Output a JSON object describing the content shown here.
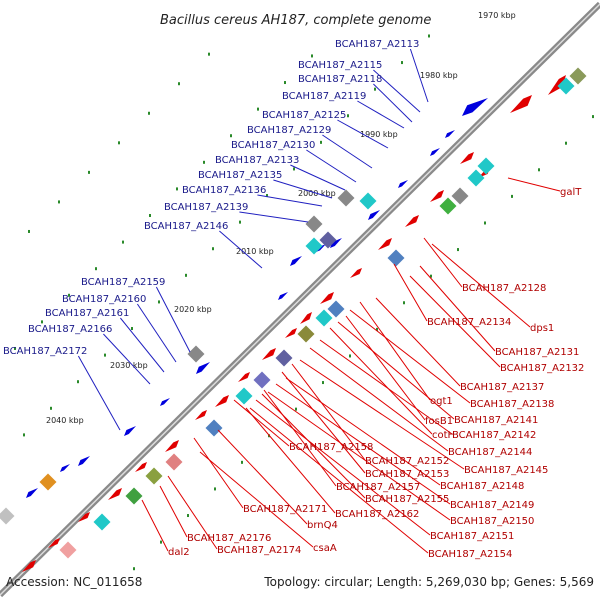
{
  "title": "Bacillus cereus AH187, complete genome",
  "footer": {
    "accession": "Accession: NC_011658",
    "summary": "Topology: circular; Length: 5,269,030 bp; Genes: 5,569"
  },
  "colors": {
    "backbone": "#8a8a8a",
    "forward_strand": "#e00000",
    "reverse_strand": "#0000dd",
    "blue_label": "#1a1a8a",
    "red_label": "#b00000",
    "tick": "#2a8a2a"
  },
  "ticks": [
    "1970 kbp",
    "1980 kbp",
    "1990 kbp",
    "2000 kbp",
    "2010 kbp",
    "2020 kbp",
    "2030 kbp",
    "2040 kbp"
  ],
  "blue_labels": [
    "BCAH187_A2113",
    "BCAH187_A2115",
    "BCAH187_A2118",
    "BCAH187_A2119",
    "BCAH187_A2125",
    "BCAH187_A2129",
    "BCAH187_A2130",
    "BCAH187_A2133",
    "BCAH187_A2135",
    "BCAH187_A2136",
    "BCAH187_A2139",
    "BCAH187_A2146",
    "BCAH187_A2159",
    "BCAH187_A2160",
    "BCAH187_A2161",
    "BCAH187_A2166",
    "BCAH187_A2172"
  ],
  "red_labels": [
    "galT",
    "BCAH187_A2128",
    "BCAH187_A2134",
    "dps1",
    "BCAH187_A2131",
    "BCAH187_A2132",
    "BCAH187_A2137",
    "ogt1",
    "BCAH187_A2138",
    "fosB1",
    "BCAH187_A2141",
    "cotH",
    "BCAH187_A2142",
    "BCAH187_A2144",
    "BCAH187_A2158",
    "BCAH187_A2152",
    "BCAH187_A2145",
    "BCAH187_A2153",
    "BCAH187_A2157",
    "BCAH187_A2148",
    "BCAH187_A2155",
    "BCAH187_A2149",
    "BCAH187_A2171",
    "BCAH187_A2162",
    "BCAH187_A2150",
    "brnQ4",
    "BCAH187_A2176",
    "BCAH187_A2151",
    "BCAH187_A2174",
    "csaA",
    "dal2",
    "BCAH187_A2154"
  ]
}
